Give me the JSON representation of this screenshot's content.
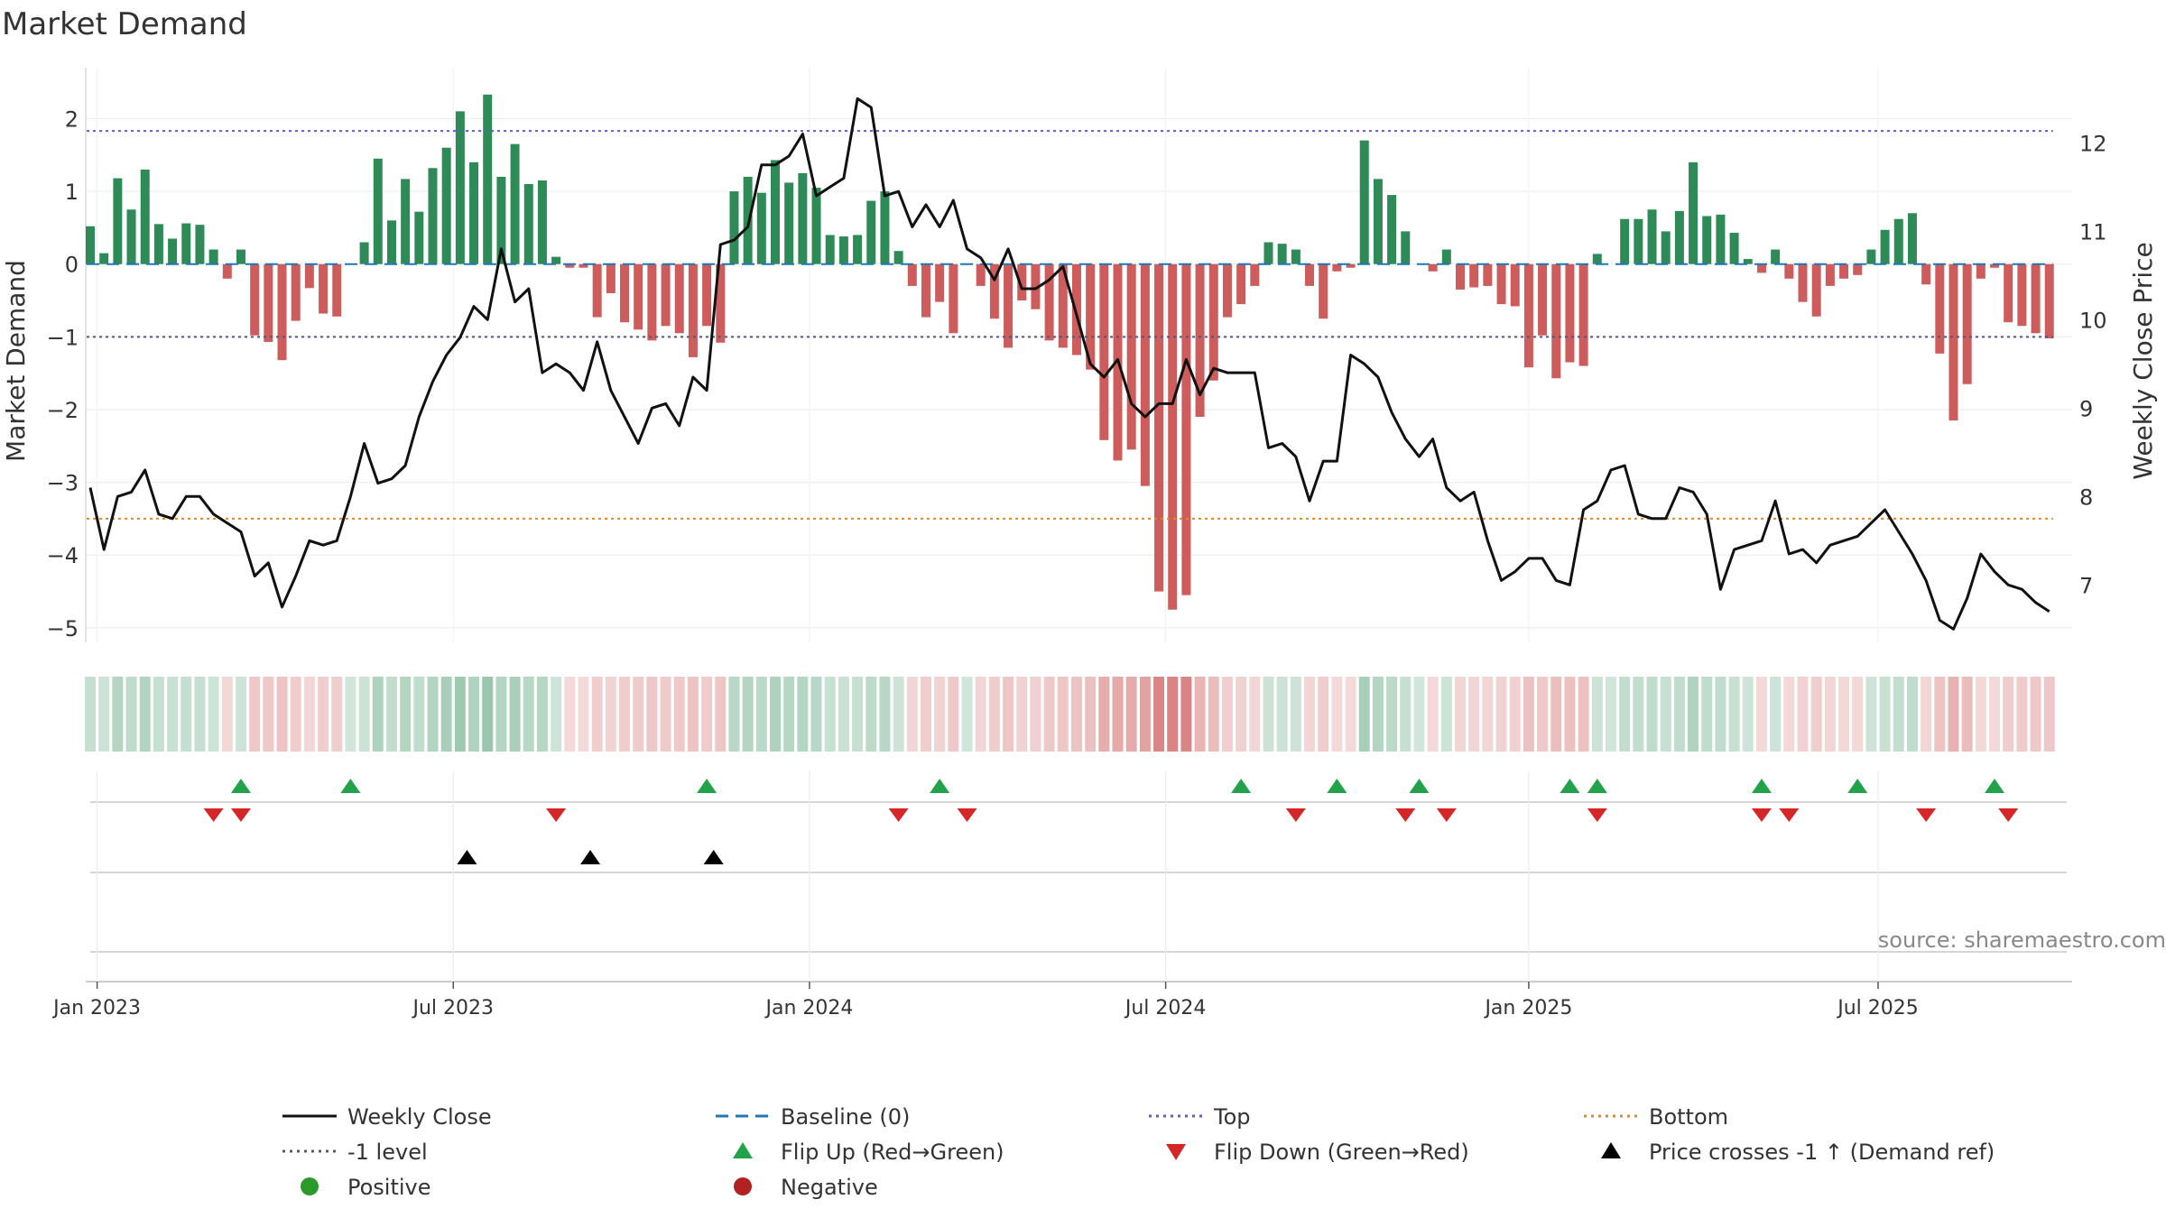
{
  "title": "Market Demand",
  "source": "source: sharemaestro.com",
  "colors": {
    "positive": "#2e8b57",
    "negative": "#cd5c5c",
    "price": "#111111",
    "baseline": "#1f77b4",
    "top": "#5b5bd6",
    "bottom": "#e08a1e",
    "level": "#555577",
    "flip_up": "#22a24a",
    "flip_down": "#d62728",
    "cross": "#000000",
    "legend_pos": "#2a9a2a",
    "legend_neg": "#b22222"
  },
  "chart_data": {
    "type": "bar",
    "title": "Market Demand",
    "ylabel": "Market Demand",
    "y2label": "Weekly Close Price",
    "ylim": [
      -5.2,
      2.7
    ],
    "y2lim": [
      6.35,
      12.85
    ],
    "yticks": [
      "2",
      "1",
      "0",
      "−1",
      "−2",
      "−3",
      "−4",
      "−5"
    ],
    "y2ticks": [
      "12",
      "11",
      "10",
      "9",
      "8",
      "7"
    ],
    "xtick_labels": [
      "Jan 2023",
      "Jul 2023",
      "Jan 2024",
      "Jul 2024",
      "Jan 2025",
      "Jul 2025"
    ],
    "xtick_weeks": [
      0.5,
      26.5,
      52.5,
      78.5,
      105,
      130.5
    ],
    "reference_lines": {
      "top": 1.83,
      "level": -1.0,
      "bottom": -3.5,
      "baseline": 0
    },
    "demand": [
      0.52,
      0.15,
      1.18,
      0.75,
      1.3,
      0.55,
      0.35,
      0.56,
      0.54,
      0.2,
      -0.2,
      0.2,
      -0.98,
      -1.07,
      -1.32,
      -0.78,
      -0.33,
      -0.68,
      -0.72,
      0.0,
      0.3,
      1.45,
      0.6,
      1.17,
      0.72,
      1.32,
      1.6,
      2.1,
      1.4,
      2.33,
      1.2,
      1.65,
      1.1,
      1.15,
      0.1,
      -0.05,
      -0.05,
      -0.73,
      -0.4,
      -0.8,
      -0.9,
      -1.05,
      -0.85,
      -0.95,
      -1.28,
      -0.85,
      -1.08,
      1.0,
      1.2,
      0.98,
      1.43,
      1.12,
      1.25,
      1.05,
      0.4,
      0.38,
      0.4,
      0.87,
      1.0,
      0.18,
      -0.3,
      -0.73,
      -0.52,
      -0.95,
      0.0,
      -0.3,
      -0.75,
      -1.15,
      -0.5,
      -0.62,
      -1.05,
      -1.15,
      -1.25,
      -1.45,
      -2.42,
      -2.7,
      -2.55,
      -3.05,
      -4.5,
      -4.75,
      -4.55,
      -2.1,
      -1.6,
      -0.73,
      -0.55,
      -0.3,
      0.3,
      0.28,
      0.2,
      -0.3,
      -0.75,
      -0.1,
      -0.05,
      1.7,
      1.17,
      0.95,
      0.45,
      0.0,
      -0.1,
      0.2,
      -0.35,
      -0.32,
      -0.3,
      -0.55,
      -0.58,
      -1.42,
      -0.98,
      -1.57,
      -1.35,
      -1.4,
      0.14,
      0.0,
      0.62,
      0.62,
      0.75,
      0.45,
      0.73,
      1.4,
      0.66,
      0.68,
      0.43,
      0.07,
      -0.12,
      0.2,
      -0.2,
      -0.52,
      -0.72,
      -0.3,
      -0.2,
      -0.15,
      0.2,
      0.47,
      0.62,
      0.7,
      -0.28,
      -1.23,
      -2.15,
      -1.65,
      -0.2,
      -0.05,
      -0.8,
      -0.85,
      -0.95,
      -1.02
    ],
    "price": [
      8.1,
      7.4,
      8.0,
      8.05,
      8.3,
      7.8,
      7.75,
      8.0,
      8.0,
      7.8,
      7.7,
      7.6,
      7.1,
      7.25,
      6.75,
      7.1,
      7.5,
      7.45,
      7.5,
      8.0,
      8.6,
      8.15,
      8.2,
      8.35,
      8.9,
      9.3,
      9.6,
      9.8,
      10.15,
      10.0,
      10.8,
      10.2,
      10.35,
      9.4,
      9.5,
      9.4,
      9.2,
      9.75,
      9.2,
      8.9,
      8.6,
      9.0,
      9.05,
      8.8,
      9.35,
      9.2,
      10.85,
      10.9,
      11.05,
      11.75,
      11.75,
      11.85,
      12.1,
      11.4,
      11.5,
      11.6,
      12.5,
      12.4,
      11.4,
      11.45,
      11.05,
      11.3,
      11.05,
      11.35,
      10.8,
      10.7,
      10.45,
      10.8,
      10.35,
      10.35,
      10.45,
      10.6,
      10.05,
      9.5,
      9.35,
      9.55,
      9.05,
      8.9,
      9.05,
      9.05,
      9.55,
      9.15,
      9.45,
      9.4,
      9.4,
      9.4,
      8.55,
      8.6,
      8.45,
      7.95,
      8.4,
      8.4,
      9.6,
      9.5,
      9.35,
      8.95,
      8.65,
      8.45,
      8.65,
      8.1,
      7.95,
      8.05,
      7.5,
      7.05,
      7.15,
      7.3,
      7.3,
      7.05,
      7.0,
      7.85,
      7.95,
      8.3,
      8.35,
      7.8,
      7.75,
      7.75,
      8.1,
      8.05,
      7.8,
      6.95,
      7.4,
      7.45,
      7.5,
      7.95,
      7.35,
      7.4,
      7.25,
      7.45,
      7.5,
      7.55,
      7.7,
      7.85,
      7.6,
      7.35,
      7.05,
      6.6,
      6.5,
      6.85,
      7.35,
      7.15,
      7.0,
      6.95,
      6.8,
      6.7
    ],
    "flip_up_weeks": [
      11,
      19,
      45,
      62,
      84,
      91,
      97,
      108,
      110,
      122,
      129,
      139
    ],
    "flip_down_weeks": [
      9,
      11,
      34,
      59,
      64,
      88,
      96,
      99,
      110,
      122,
      124,
      134,
      140
    ],
    "cross_weeks": [
      27.5,
      36.5,
      45.5
    ]
  },
  "legend": [
    {
      "label": "Weekly Close",
      "symbol": "line"
    },
    {
      "label": "Baseline (0)",
      "symbol": "dash"
    },
    {
      "label": "Top",
      "symbol": "dot-top"
    },
    {
      "label": "Bottom",
      "symbol": "dot-bottom"
    },
    {
      "label": "-1 level",
      "symbol": "dot-level"
    },
    {
      "label": "Flip Up (Red→Green)",
      "symbol": "tri-up-green"
    },
    {
      "label": "Flip Down (Green→Red)",
      "symbol": "tri-down-red"
    },
    {
      "label": "Price crosses -1 ↑ (Demand ref)",
      "symbol": "tri-up-black"
    },
    {
      "label": "Positive",
      "symbol": "circle-green"
    },
    {
      "label": "Negative",
      "symbol": "circle-red"
    }
  ]
}
